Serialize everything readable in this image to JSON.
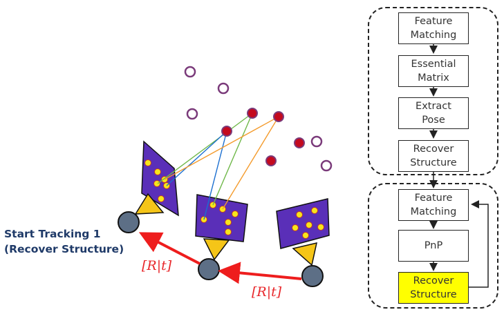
{
  "caption": {
    "line1": "Start Tracking 1",
    "line2": "(Recover Structure)"
  },
  "transforms": {
    "label_left": "[R|t]",
    "label_right": "[R|t]"
  },
  "pipeline": {
    "group_initialization": {
      "steps": [
        {
          "line1": "Feature",
          "line2": "Matching"
        },
        {
          "line1": "Essential",
          "line2": "Matrix"
        },
        {
          "line1": "Extract",
          "line2": "Pose"
        },
        {
          "line1": "Recover",
          "line2": "Structure"
        }
      ]
    },
    "group_tracking": {
      "steps": [
        {
          "line1": "Feature",
          "line2": "Matching"
        },
        {
          "line1": "PnP",
          "line2": ""
        },
        {
          "line1": "Recover",
          "line2": "Structure",
          "highlighted": true
        }
      ]
    }
  },
  "colors": {
    "image_plane": "#5a2fb8",
    "feature_point": "#f7e51b",
    "camera_body": "#5d6f86",
    "lens": "#f5c518",
    "point_3d_known": "#c40a1e",
    "point_3d_unknown": "#7a3a7a",
    "motion_arrow": "#ee1d1d",
    "ray_green": "#70b84a",
    "ray_blue": "#1b6fd0",
    "ray_orange": "#f49b2c",
    "caption_text": "#1f3a68",
    "highlight": "#ffff00"
  }
}
